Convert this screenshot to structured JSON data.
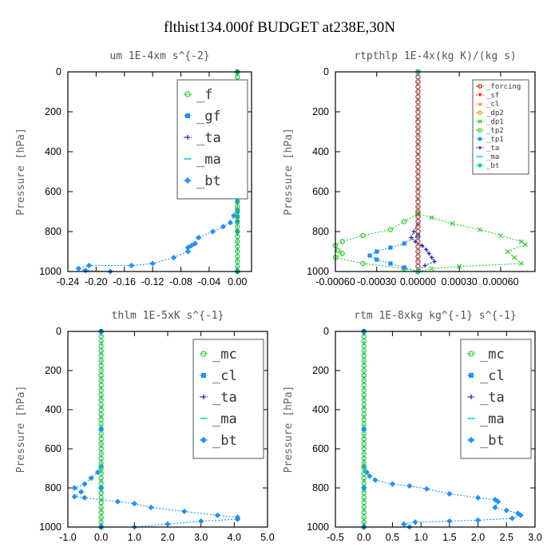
{
  "figure": {
    "title": "flthist134.000f  BUDGET at238E,30N"
  },
  "chart_data": [
    {
      "type": "line",
      "title": "um  1E-4xm s^{-2}",
      "ylabel": "Pressure [hPa]",
      "xlim": [
        -0.24,
        0.02
      ],
      "ylim": [
        1000,
        0
      ],
      "xticks": [
        "-0.24",
        "-0.20",
        "-0.16",
        "-0.12",
        "-0.08",
        "-0.04",
        "0.00"
      ],
      "yticks": [
        "0",
        "200",
        "400",
        "600",
        "800",
        "1000"
      ],
      "legend_position": "top-right",
      "legend_size": "large",
      "series": [
        {
          "name": "_f",
          "color": "#22cc22",
          "marker": "circle",
          "x": [
            0,
            0,
            0,
            0,
            0,
            0,
            0,
            0,
            0,
            0,
            0,
            0,
            0,
            0,
            0,
            0,
            0,
            0,
            0,
            0,
            0,
            0,
            0,
            0,
            0,
            0,
            0,
            0,
            0,
            0,
            0,
            0,
            0,
            0,
            0,
            0,
            0,
            0,
            0,
            0,
            0
          ],
          "y": [
            0,
            25,
            50,
            75,
            100,
            125,
            150,
            175,
            200,
            225,
            250,
            275,
            300,
            325,
            350,
            375,
            400,
            425,
            450,
            475,
            500,
            525,
            550,
            575,
            600,
            625,
            650,
            675,
            700,
            725,
            750,
            775,
            800,
            825,
            850,
            875,
            900,
            925,
            950,
            975,
            1000
          ]
        },
        {
          "name": "_gf",
          "color": "#1e90ff",
          "marker": "square",
          "x": [
            0,
            0,
            0.001,
            0.003,
            0.002,
            0,
            0,
            0,
            0,
            0,
            0,
            0,
            0,
            0,
            0,
            0
          ],
          "y": [
            0,
            100,
            160,
            175,
            190,
            200,
            300,
            400,
            500,
            600,
            650,
            700,
            725,
            750,
            800,
            1000
          ]
        },
        {
          "name": "_ta",
          "color": "#2222cc",
          "marker": "plus",
          "x": [
            0,
            0
          ],
          "y": [
            0,
            1000
          ]
        },
        {
          "name": "_ma",
          "color": "#00ced1",
          "marker": "dash",
          "x": [
            0,
            0
          ],
          "y": [
            0,
            1000
          ]
        },
        {
          "name": "_bt",
          "color": "#1e90ff",
          "marker": "diamond",
          "x": [
            0,
            0,
            -0.005,
            -0.01,
            -0.02,
            -0.035,
            -0.055,
            -0.06,
            -0.065,
            -0.07,
            -0.07,
            -0.09,
            -0.12,
            -0.15,
            -0.21,
            -0.225,
            -0.215,
            -0.18
          ],
          "y": [
            0,
            690,
            720,
            755,
            775,
            800,
            830,
            860,
            870,
            880,
            900,
            930,
            960,
            970,
            970,
            985,
            995,
            1000
          ]
        }
      ]
    },
    {
      "type": "line",
      "title": "rtpthlp  1E-4x(kg K)/(kg s)",
      "ylabel": "Pressure [hPa]",
      "xlim": [
        -0.0006,
        0.00085
      ],
      "ylim": [
        1000,
        0
      ],
      "xticks": [
        "-0.00060",
        "-0.00030",
        "0.00000",
        "0.00030",
        "0.00060"
      ],
      "yticks": [
        "0",
        "200",
        "400",
        "600",
        "800",
        "1000"
      ],
      "legend_position": "top-right",
      "legend_size": "small",
      "series": [
        {
          "name": "_forcing",
          "color": "#cc2222",
          "marker": "circle",
          "x": [
            0,
            0,
            0,
            0,
            0,
            0,
            0,
            0,
            0,
            0,
            0,
            0,
            0,
            0,
            0,
            0,
            0,
            0,
            0,
            0,
            0,
            0,
            0,
            0,
            0,
            0,
            0,
            0,
            0,
            0,
            0,
            0,
            0,
            0,
            0,
            0,
            0,
            0,
            0,
            0,
            0
          ],
          "y": [
            0,
            25,
            50,
            75,
            100,
            125,
            150,
            175,
            200,
            225,
            250,
            275,
            300,
            325,
            350,
            375,
            400,
            425,
            450,
            475,
            500,
            525,
            550,
            575,
            600,
            625,
            650,
            675,
            700,
            725,
            750,
            775,
            800,
            825,
            850,
            875,
            900,
            925,
            950,
            975,
            1000
          ]
        },
        {
          "name": "_sf",
          "color": "#ff2222",
          "marker": "triangle-down",
          "x": [
            0,
            0
          ],
          "y": [
            0,
            1000
          ]
        },
        {
          "name": "_cl",
          "color": "#ff9900",
          "marker": "triangle-up",
          "x": [
            0,
            0
          ],
          "y": [
            0,
            1000
          ]
        },
        {
          "name": "_dp2",
          "color": "#ccaa00",
          "marker": "circle",
          "x": [
            0,
            0
          ],
          "y": [
            0,
            1000
          ]
        },
        {
          "name": "_dp1",
          "color": "#22cc22",
          "marker": "cross",
          "x": [
            0,
            0,
            0.0001,
            0.00025,
            0.00045,
            0.0006,
            0.00075,
            0.00078,
            0.00065,
            0.0007,
            0.00075,
            0.0003,
            0.0001,
            0
          ],
          "y": [
            0,
            710,
            730,
            760,
            790,
            820,
            850,
            865,
            900,
            930,
            960,
            975,
            985,
            1000
          ]
        },
        {
          "name": "_tp2",
          "color": "#22cc22",
          "marker": "circle",
          "x": [
            0,
            0,
            -0.0001,
            -0.0002,
            -0.0004,
            -0.00055,
            -0.0006,
            -0.00058,
            -0.00055,
            -0.0006,
            -0.0004,
            -0.0001,
            0
          ],
          "y": [
            0,
            710,
            750,
            790,
            820,
            850,
            870,
            895,
            910,
            930,
            960,
            985,
            1000
          ]
        },
        {
          "name": "_tp1",
          "color": "#1e90ff",
          "marker": "square",
          "x": [
            0,
            0,
            -0.0001,
            -0.0002,
            -0.0003,
            -0.00035,
            -0.0003,
            -0.0002,
            -0.0001,
            0
          ],
          "y": [
            0,
            820,
            860,
            880,
            900,
            920,
            940,
            960,
            980,
            1000
          ]
        },
        {
          "name": "_ta",
          "color": "#2222cc",
          "marker": "plus",
          "x": [
            0,
            0,
            -3e-05,
            -5e-05,
            -2e-05,
            3e-05,
            6e-05,
            8e-05,
            0.0001,
            0.00012,
            5e-05,
            0
          ],
          "y": [
            0,
            760,
            800,
            830,
            850,
            870,
            890,
            910,
            930,
            950,
            970,
            1000
          ]
        },
        {
          "name": "_ma",
          "color": "#00ced1",
          "marker": "dash",
          "x": [
            0,
            0
          ],
          "y": [
            0,
            1000
          ]
        },
        {
          "name": "_bt",
          "color": "#00ced1",
          "marker": "diamond",
          "x": [
            0,
            0
          ],
          "y": [
            0,
            1000
          ]
        }
      ]
    },
    {
      "type": "line",
      "title": "thlm  1E-5xK s^{-1}",
      "ylabel": "Pressure [hPa]",
      "xlim": [
        -1.0,
        5.0
      ],
      "ylim": [
        1000,
        0
      ],
      "xticks": [
        "-1.0",
        "0.0",
        "1.0",
        "2.0",
        "3.0",
        "4.0",
        "5.0"
      ],
      "yticks": [
        "0",
        "200",
        "400",
        "600",
        "800",
        "1000"
      ],
      "legend_position": "top-right",
      "legend_size": "large",
      "series": [
        {
          "name": "_mc",
          "color": "#22cc22",
          "marker": "circle",
          "x": [
            0,
            0,
            0,
            0,
            0,
            0,
            0,
            0,
            0,
            0,
            0,
            0,
            0,
            0,
            0,
            0,
            0,
            0,
            0,
            0,
            0,
            0,
            0,
            0,
            0,
            0,
            0,
            0,
            0,
            0,
            0,
            0,
            0,
            0,
            0,
            0,
            0,
            0,
            0,
            0,
            0
          ],
          "y": [
            0,
            25,
            50,
            75,
            100,
            125,
            150,
            175,
            200,
            225,
            250,
            275,
            300,
            325,
            350,
            375,
            400,
            425,
            450,
            475,
            500,
            525,
            550,
            575,
            600,
            625,
            650,
            675,
            700,
            725,
            750,
            775,
            800,
            825,
            850,
            875,
            900,
            925,
            950,
            975,
            1000
          ]
        },
        {
          "name": "_cl",
          "color": "#1e90ff",
          "marker": "square",
          "x": [
            0,
            0,
            0,
            0
          ],
          "y": [
            0,
            500,
            800,
            1000
          ]
        },
        {
          "name": "_ta",
          "color": "#2222cc",
          "marker": "plus",
          "x": [
            0,
            0
          ],
          "y": [
            0,
            1000
          ]
        },
        {
          "name": "_ma",
          "color": "#00ced1",
          "marker": "dash",
          "x": [
            0,
            0
          ],
          "y": [
            0,
            1000
          ]
        },
        {
          "name": "_bt",
          "color": "#1e90ff",
          "marker": "diamond",
          "x": [
            0,
            0,
            -0.1,
            -0.3,
            -0.5,
            -0.8,
            -0.6,
            -0.8,
            -0.5,
            0.5,
            1.0,
            1.5,
            2.5,
            3.5,
            4.1,
            4.1,
            3.0,
            2.0,
            1.0
          ],
          "y": [
            0,
            690,
            720,
            750,
            780,
            800,
            820,
            845,
            850,
            870,
            880,
            900,
            920,
            940,
            950,
            960,
            970,
            985,
            1000
          ]
        }
      ]
    },
    {
      "type": "line",
      "title": "rtm  1E-8xkg kg^{-1} s^{-1}",
      "ylabel": "Pressure [hPa]",
      "xlim": [
        -0.5,
        3.0
      ],
      "ylim": [
        1000,
        0
      ],
      "xticks": [
        "-0.5",
        "0.0",
        "0.5",
        "1.0",
        "1.5",
        "2.0",
        "2.5",
        "3.0"
      ],
      "yticks": [
        "0",
        "200",
        "400",
        "600",
        "800",
        "1000"
      ],
      "legend_position": "top-right",
      "legend_size": "large",
      "series": [
        {
          "name": "_mc",
          "color": "#22cc22",
          "marker": "circle",
          "x": [
            0,
            0,
            0,
            0,
            0,
            0,
            0,
            0,
            0,
            0,
            0,
            0,
            0,
            0,
            0,
            0,
            0,
            0,
            0,
            0,
            0,
            0,
            0,
            0,
            0,
            0,
            0,
            0,
            0,
            0,
            0,
            0,
            0,
            0,
            0,
            0,
            0,
            0,
            0,
            0,
            0
          ],
          "y": [
            0,
            25,
            50,
            75,
            100,
            125,
            150,
            175,
            200,
            225,
            250,
            275,
            300,
            325,
            350,
            375,
            400,
            425,
            450,
            475,
            500,
            525,
            550,
            575,
            600,
            625,
            650,
            675,
            700,
            725,
            750,
            775,
            800,
            825,
            850,
            875,
            900,
            925,
            950,
            975,
            1000
          ]
        },
        {
          "name": "_cl",
          "color": "#1e90ff",
          "marker": "square",
          "x": [
            0,
            0,
            0,
            0
          ],
          "y": [
            0,
            500,
            800,
            1000
          ]
        },
        {
          "name": "_ta",
          "color": "#2222cc",
          "marker": "plus",
          "x": [
            0,
            0
          ],
          "y": [
            0,
            1000
          ]
        },
        {
          "name": "_ma",
          "color": "#00ced1",
          "marker": "dash",
          "x": [
            0,
            0
          ],
          "y": [
            0,
            1000
          ]
        },
        {
          "name": "_bt",
          "color": "#1e90ff",
          "marker": "diamond",
          "x": [
            0,
            0,
            0.05,
            0.1,
            0.2,
            0.5,
            0.8,
            1.1,
            1.5,
            2.0,
            2.3,
            2.35,
            2.3,
            2.5,
            2.7,
            2.75,
            2.6,
            2.0,
            1.5,
            0.9,
            0.7,
            0.8
          ],
          "y": [
            0,
            690,
            720,
            740,
            760,
            780,
            790,
            805,
            830,
            850,
            860,
            870,
            900,
            915,
            930,
            940,
            955,
            965,
            970,
            975,
            985,
            1000
          ]
        }
      ]
    }
  ]
}
